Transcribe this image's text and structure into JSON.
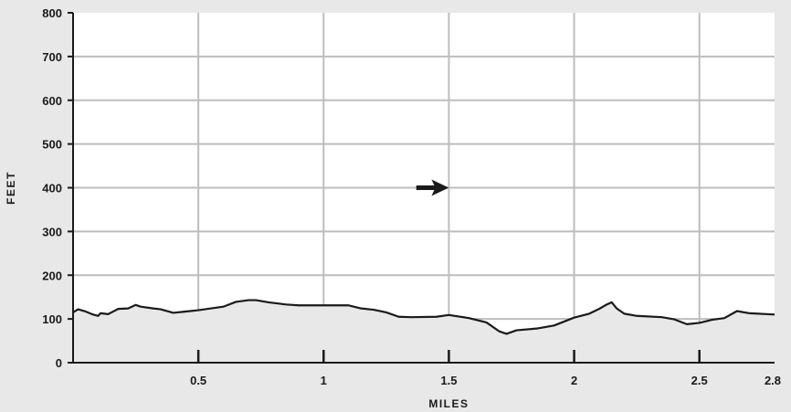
{
  "chart_data": {
    "type": "area",
    "xlabel": "MILES",
    "ylabel": "FEET",
    "xlim": [
      0,
      2.8
    ],
    "ylim": [
      0,
      800
    ],
    "x_ticks": [
      {
        "value": 0.5,
        "label": "0.5"
      },
      {
        "value": 1,
        "label": "1"
      },
      {
        "value": 1.5,
        "label": "1.5"
      },
      {
        "value": 2,
        "label": "2"
      },
      {
        "value": 2.5,
        "label": "2.5"
      },
      {
        "value": 2.8,
        "label": "2.8"
      }
    ],
    "y_ticks": [
      {
        "value": 0,
        "label": "0"
      },
      {
        "value": 100,
        "label": "100"
      },
      {
        "value": 200,
        "label": "200"
      },
      {
        "value": 300,
        "label": "300"
      },
      {
        "value": 400,
        "label": "400"
      },
      {
        "value": 500,
        "label": "500"
      },
      {
        "value": 600,
        "label": "600"
      },
      {
        "value": 700,
        "label": "700"
      },
      {
        "value": 800,
        "label": "800"
      }
    ],
    "grid": true,
    "colors": {
      "line": "#1a1a1a",
      "fill": "#e8e8e8",
      "plot_bg": "#ffffff",
      "grid": "#bdbdbd"
    },
    "series": [
      {
        "points": [
          [
            0,
            115
          ],
          [
            0.02,
            122
          ],
          [
            0.05,
            117
          ],
          [
            0.08,
            110
          ],
          [
            0.1,
            107
          ],
          [
            0.11,
            113
          ],
          [
            0.14,
            111
          ],
          [
            0.15,
            114
          ],
          [
            0.18,
            123
          ],
          [
            0.22,
            124
          ],
          [
            0.25,
            132
          ],
          [
            0.27,
            128
          ],
          [
            0.32,
            124
          ],
          [
            0.35,
            122
          ],
          [
            0.4,
            114
          ],
          [
            0.45,
            117
          ],
          [
            0.5,
            120
          ],
          [
            0.6,
            128
          ],
          [
            0.65,
            139
          ],
          [
            0.7,
            143
          ],
          [
            0.73,
            143
          ],
          [
            0.78,
            138
          ],
          [
            0.85,
            133
          ],
          [
            0.9,
            131
          ],
          [
            1.0,
            131
          ],
          [
            1.1,
            131
          ],
          [
            1.15,
            124
          ],
          [
            1.2,
            121
          ],
          [
            1.25,
            115
          ],
          [
            1.3,
            105
          ],
          [
            1.35,
            104
          ],
          [
            1.45,
            105
          ],
          [
            1.5,
            109
          ],
          [
            1.58,
            102
          ],
          [
            1.65,
            92
          ],
          [
            1.7,
            72
          ],
          [
            1.73,
            66
          ],
          [
            1.77,
            74
          ],
          [
            1.85,
            78
          ],
          [
            1.92,
            85
          ],
          [
            2.0,
            103
          ],
          [
            2.06,
            112
          ],
          [
            2.1,
            123
          ],
          [
            2.13,
            133
          ],
          [
            2.15,
            138
          ],
          [
            2.17,
            124
          ],
          [
            2.2,
            112
          ],
          [
            2.25,
            107
          ],
          [
            2.35,
            104
          ],
          [
            2.4,
            99
          ],
          [
            2.45,
            88
          ],
          [
            2.5,
            91
          ],
          [
            2.55,
            98
          ],
          [
            2.6,
            102
          ],
          [
            2.65,
            118
          ],
          [
            2.7,
            113
          ],
          [
            2.8,
            110
          ]
        ]
      }
    ],
    "annotations": [
      {
        "type": "arrow",
        "x_start": 1.37,
        "x_end": 1.5,
        "y": 400,
        "direction": "right"
      }
    ]
  }
}
